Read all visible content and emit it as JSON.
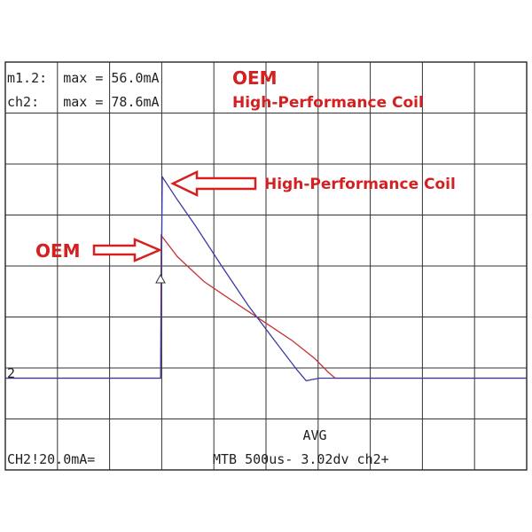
{
  "chart_data": {
    "type": "line",
    "readouts": [
      "m1.2:  max = 56.0mA",
      "ch2:   max = 78.6mA"
    ],
    "status": {
      "mode": "AVG",
      "channel": "CH2!20.0mA=",
      "timebase": "MTB 500us- 3.02dv ch2+"
    },
    "channel_marker": "2",
    "annotations": [
      "High-Performance Coil",
      "OEM"
    ],
    "xlim": [
      0,
      5000
    ],
    "ylim": [
      -36,
      124
    ],
    "series": [
      {
        "name": "OEM",
        "color": "#c83232",
        "x": [
          0,
          1490,
          1495,
          1650,
          1905,
          2245,
          2500,
          2755,
          2968,
          3095,
          3163,
          5000
        ],
        "values": [
          0,
          0,
          56,
          47.7,
          37.9,
          28.5,
          21.6,
          14.6,
          7.7,
          2.4,
          0,
          0
        ]
      },
      {
        "name": "High-Performance Coil",
        "color": "#3a3aa8",
        "x": [
          0,
          1490,
          1505,
          1650,
          1820,
          2075,
          2330,
          2585,
          2800,
          2885,
          3010,
          5000
        ],
        "values": [
          0,
          0,
          79,
          70,
          60,
          44,
          28.5,
          14.6,
          3.1,
          -1,
          0,
          0
        ]
      }
    ]
  }
}
